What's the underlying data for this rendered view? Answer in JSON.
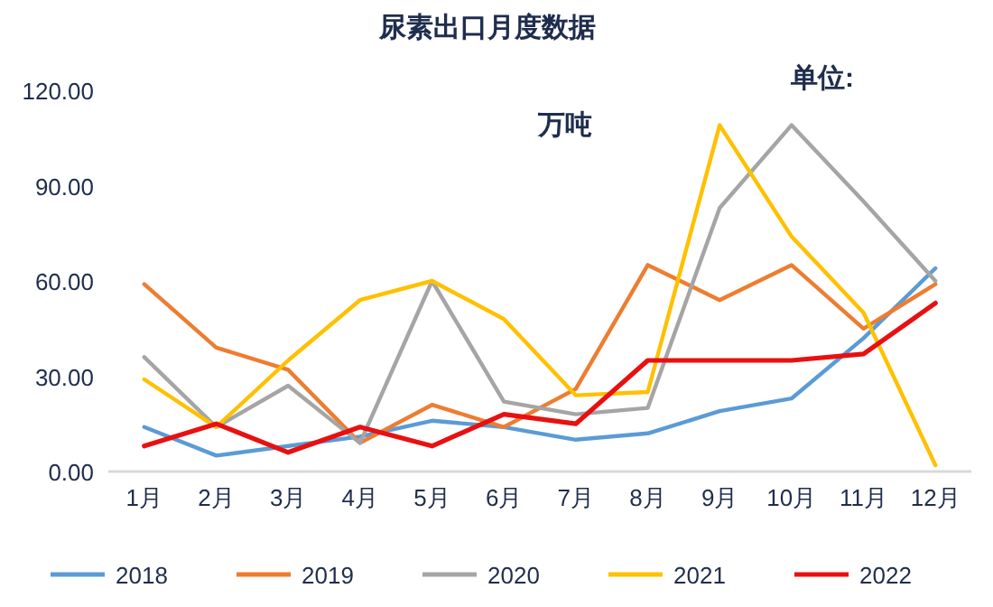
{
  "chart_data": {
    "type": "line",
    "title": "尿素出口月度数据",
    "annotations": [
      "单位:",
      "万吨"
    ],
    "categories": [
      "1月",
      "2月",
      "3月",
      "4月",
      "5月",
      "6月",
      "7月",
      "8月",
      "9月",
      "10月",
      "11月",
      "12月"
    ],
    "ylim": [
      0,
      120
    ],
    "yticks": [
      {
        "value": 0,
        "label": "0.00"
      },
      {
        "value": 30,
        "label": "30.00"
      },
      {
        "value": 60,
        "label": "60.00"
      },
      {
        "value": 90,
        "label": "90.00"
      },
      {
        "value": 120,
        "label": "120.00"
      }
    ],
    "grid": false,
    "legend": "bottom",
    "marker": "none",
    "line_style": "solid",
    "series": [
      {
        "name": "2018",
        "color": "#5b9bd5",
        "values": [
          14,
          5,
          8,
          11,
          16,
          14,
          10,
          12,
          19,
          23,
          42,
          64
        ]
      },
      {
        "name": "2019",
        "color": "#ed7d31",
        "values": [
          59,
          39,
          32,
          9,
          21,
          14,
          26,
          65,
          54,
          65,
          45,
          59
        ]
      },
      {
        "name": "2020",
        "color": "#a5a5a5",
        "values": [
          36,
          14,
          27,
          9,
          60,
          22,
          18,
          20,
          83,
          109,
          85,
          60
        ]
      },
      {
        "name": "2021",
        "color": "#ffc000",
        "values": [
          29,
          14,
          35,
          54,
          60,
          48,
          24,
          25,
          109,
          74,
          50,
          2
        ]
      },
      {
        "name": "2022",
        "color": "#e81010",
        "values": [
          8,
          15,
          6,
          14,
          8,
          18,
          15,
          35,
          35,
          35,
          37,
          53
        ]
      }
    ]
  }
}
